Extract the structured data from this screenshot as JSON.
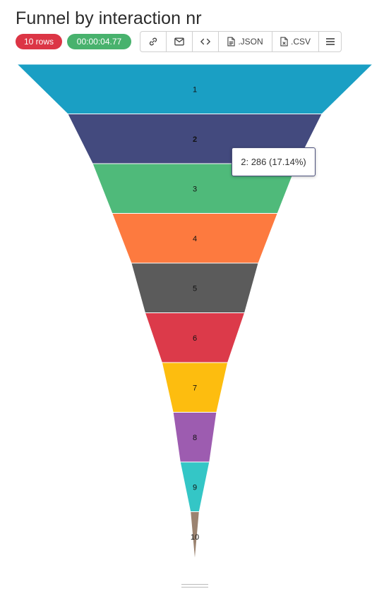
{
  "title": "Funnel by interaction nr",
  "badges": {
    "rows": "10 rows",
    "time": "00:00:04.77"
  },
  "toolbar": {
    "link_icon": "link-icon",
    "email_icon": "mail-icon",
    "embed_icon": "code-icon",
    "json_label": ".JSON",
    "csv_label": ".CSV",
    "menu_icon": "hamburger-menu-icon"
  },
  "tooltip": "2: 286 (17.14%)",
  "colors": [
    "#1a9fc4",
    "#434a7e",
    "#4fba7a",
    "#fd7a3f",
    "#5b5b5b",
    "#dc3a4a",
    "#fdbd0f",
    "#9d5cb0",
    "#34c6c6",
    "#9b8370"
  ],
  "chart_data": {
    "type": "funnel",
    "categories": [
      "1",
      "2",
      "3",
      "4",
      "5",
      "6",
      "7",
      "8",
      "9",
      "10"
    ],
    "values": [
      400,
      286,
      230,
      186,
      143,
      112,
      74,
      49,
      33,
      10
    ],
    "highlighted": "2"
  }
}
